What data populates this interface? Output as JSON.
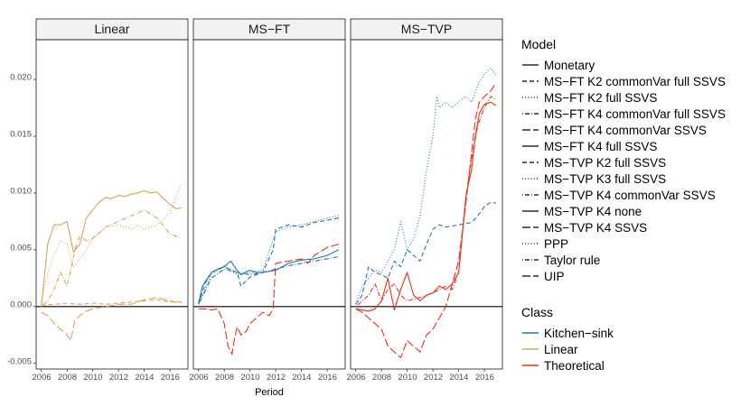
{
  "chart_data": {
    "type": "line",
    "title": "",
    "xlabel": "Period",
    "ylabel": "",
    "xlim": [
      2005.6,
      2017.4
    ],
    "ylim": [
      -0.0055,
      0.0235
    ],
    "x_ticks": [
      "2006",
      "2008",
      "2010",
      "2012",
      "2014",
      "2016"
    ],
    "y_ticks": [
      "-0.005",
      "0.000",
      "0.005",
      "0.010",
      "0.015",
      "0.020"
    ],
    "x_tick_values": [
      2006,
      2008,
      2010,
      2012,
      2014,
      2016
    ],
    "y_tick_values": [
      -0.005,
      0,
      0.005,
      0.01,
      0.015,
      0.02
    ],
    "reference_line_y": 0,
    "panels": [
      "Linear",
      "MS−FT",
      "MS−TVP"
    ],
    "model_legend_title": "Model",
    "class_legend_title": "Class",
    "models": [
      {
        "name": "Monetary",
        "dash": "solid"
      },
      {
        "name": "MS−FT K2 commonVar full SSVS",
        "dash": "dashed"
      },
      {
        "name": "MS−FT K2 full SSVS",
        "dash": "dotted"
      },
      {
        "name": "MS−FT K4 commonVar full SSVS",
        "dash": "dotdash"
      },
      {
        "name": "MS−FT K4 commonVar SSVS",
        "dash": "longdash"
      },
      {
        "name": "MS−FT K4 full SSVS",
        "dash": "solid"
      },
      {
        "name": "MS−TVP K2 full SSVS",
        "dash": "dashed"
      },
      {
        "name": "MS−TVP K3 full SSVS",
        "dash": "dotted"
      },
      {
        "name": "MS−TVP K4 commonVar SSVS",
        "dash": "dotdash"
      },
      {
        "name": "MS−TVP K4 none",
        "dash": "solid"
      },
      {
        "name": "MS−TVP K4 SSVS",
        "dash": "longdash"
      },
      {
        "name": "PPP",
        "dash": "dotted"
      },
      {
        "name": "Taylor rule",
        "dash": "dotdash"
      },
      {
        "name": "UIP",
        "dash": "longdash"
      }
    ],
    "classes": [
      {
        "name": "Kitchen−sink",
        "color": "#1f78a8"
      },
      {
        "name": "Linear",
        "color": "#d9a35a"
      },
      {
        "name": "Theoretical",
        "color": "#e8301c"
      }
    ],
    "series": [
      {
        "panel": 0,
        "model": "Monetary",
        "class": "Linear",
        "x": [
          2006.0,
          2006.5,
          2007.0,
          2007.5,
          2008.0,
          2008.5,
          2009.0,
          2009.5,
          2010.0,
          2010.5,
          2011.0,
          2011.5,
          2012.0,
          2012.5,
          2013.0,
          2013.5,
          2014.0,
          2014.5,
          2015.0,
          2015.5,
          2016.0,
          2016.5,
          2016.9
        ],
        "y": [
          0.0,
          0.0055,
          0.0072,
          0.0072,
          0.0075,
          0.0048,
          0.0055,
          0.0078,
          0.0085,
          0.0092,
          0.0096,
          0.0095,
          0.0098,
          0.0097,
          0.0099,
          0.01,
          0.0102,
          0.01,
          0.0101,
          0.0095,
          0.009,
          0.0086,
          0.0087
        ]
      },
      {
        "panel": 0,
        "model": "PPP",
        "class": "Linear",
        "x": [
          2006.0,
          2006.5,
          2007.0,
          2007.5,
          2008.0,
          2008.5,
          2009.0,
          2009.5,
          2010.0,
          2010.5,
          2011.0,
          2012.0,
          2013.0,
          2013.5,
          2014.0,
          2015.0,
          2016.0,
          2016.5,
          2016.9
        ],
        "y": [
          0.0004,
          0.003,
          0.0045,
          0.0058,
          0.0055,
          0.0035,
          0.0042,
          0.005,
          0.006,
          0.0065,
          0.007,
          0.0072,
          0.0068,
          0.0072,
          0.0068,
          0.0072,
          0.0082,
          0.0098,
          0.0108
        ]
      },
      {
        "panel": 0,
        "model": "Taylor rule",
        "class": "Linear",
        "x": [
          2006.0,
          2006.5,
          2007.0,
          2007.5,
          2008.0,
          2008.3,
          2008.6,
          2009.0,
          2009.5,
          2010.0,
          2011.0,
          2012.0,
          2013.0,
          2014.0,
          2015.0,
          2016.0,
          2016.9
        ],
        "y": [
          0.0,
          0.0005,
          0.0015,
          0.003,
          0.0018,
          0.0032,
          0.005,
          0.0062,
          0.0058,
          0.006,
          0.007,
          0.0075,
          0.008,
          0.0085,
          0.0078,
          0.0064,
          0.006
        ]
      },
      {
        "panel": 0,
        "model": "UIP",
        "class": "Linear",
        "x": [
          2006.0,
          2006.5,
          2007.0,
          2007.5,
          2008.0,
          2008.3,
          2008.6,
          2009.0,
          2009.5,
          2010.0,
          2011.0,
          2012.0,
          2013.0,
          2014.0,
          2015.0,
          2016.0,
          2016.9
        ],
        "y": [
          -0.0005,
          -0.0008,
          -0.0015,
          -0.002,
          -0.0025,
          -0.003,
          -0.0012,
          -0.0008,
          -0.0004,
          -0.0002,
          0.0,
          0.0002,
          0.0002,
          0.0006,
          0.0008,
          0.0005,
          0.0003
        ]
      },
      {
        "panel": 0,
        "model": "MS−FT K2 commonVar full SSVS",
        "class": "Linear",
        "x": [
          2006.0,
          2007.0,
          2008.0,
          2009.0,
          2010.0,
          2011.0,
          2012.0,
          2013.0,
          2014.0,
          2015.0,
          2016.0,
          2016.9
        ],
        "y": [
          0.0001,
          0.0002,
          0.0003,
          0.0002,
          0.0003,
          0.0002,
          0.0003,
          0.0004,
          0.0005,
          0.0006,
          0.0004,
          0.0004
        ]
      },
      {
        "panel": 1,
        "model": "MS−FT K4 full SSVS",
        "class": "Kitchen−sink",
        "x": [
          2006.0,
          2006.3,
          2006.7,
          2007.0,
          2007.5,
          2008.0,
          2008.5,
          2009.0,
          2009.3,
          2009.6,
          2010.0,
          2010.5,
          2011.0,
          2012.0,
          2013.0,
          2014.0,
          2015.0,
          2016.0,
          2016.9
        ],
        "y": [
          0.0003,
          0.0018,
          0.0025,
          0.003,
          0.0033,
          0.0035,
          0.004,
          0.0032,
          0.0028,
          0.003,
          0.0032,
          0.003,
          0.003,
          0.0032,
          0.0038,
          0.0041,
          0.0042,
          0.0045,
          0.005
        ]
      },
      {
        "panel": 1,
        "model": "MS−FT K2 commonVar full SSVS",
        "class": "Kitchen−sink",
        "x": [
          2006.0,
          2006.5,
          2007.0,
          2008.0,
          2009.0,
          2009.3,
          2010.0,
          2011.0,
          2011.8,
          2012.0,
          2013.0,
          2014.0,
          2015.0,
          2016.0,
          2016.9
        ],
        "y": [
          0.0002,
          0.002,
          0.003,
          0.0035,
          0.003,
          0.0018,
          0.0026,
          0.003,
          0.005,
          0.0068,
          0.0072,
          0.007,
          0.0074,
          0.0076,
          0.0078
        ]
      },
      {
        "panel": 1,
        "model": "MS−FT K2 full SSVS",
        "class": "Kitchen−sink",
        "x": [
          2006.0,
          2007.0,
          2008.0,
          2009.0,
          2010.0,
          2011.0,
          2012.0,
          2013.0,
          2014.0,
          2015.0,
          2016.0,
          2016.9
        ],
        "y": [
          0.0003,
          0.0028,
          0.0036,
          0.0028,
          0.003,
          0.0032,
          0.0066,
          0.007,
          0.0072,
          0.0075,
          0.0078,
          0.008
        ]
      },
      {
        "panel": 1,
        "model": "MS−FT K4 commonVar full SSVS",
        "class": "Kitchen−sink",
        "x": [
          2006.0,
          2007.0,
          2008.0,
          2009.0,
          2010.0,
          2011.0,
          2012.0,
          2013.0,
          2014.0,
          2015.0,
          2016.0,
          2016.9
        ],
        "y": [
          0.0002,
          0.0025,
          0.0033,
          0.003,
          0.0028,
          0.003,
          0.0033,
          0.0036,
          0.0038,
          0.004,
          0.0042,
          0.0044
        ]
      },
      {
        "panel": 1,
        "model": "UIP",
        "class": "Theoretical",
        "x": [
          2006.0,
          2006.5,
          2007.0,
          2007.5,
          2008.0,
          2008.3,
          2008.6,
          2008.8,
          2009.0,
          2009.3,
          2009.7,
          2010.0,
          2010.5,
          2011.0,
          2011.5,
          2011.8,
          2012.0,
          2013.0,
          2014.0,
          2014.5,
          2015.0,
          2016.0,
          2016.9
        ],
        "y": [
          -0.0002,
          -0.0002,
          -0.0003,
          -0.0002,
          -0.0015,
          -0.0035,
          -0.0042,
          -0.0028,
          -0.0018,
          -0.0025,
          -0.0022,
          -0.0015,
          -0.001,
          -0.0005,
          -0.0008,
          -0.0002,
          0.0038,
          0.004,
          0.0042,
          0.0038,
          0.0045,
          0.0052,
          0.0055
        ]
      },
      {
        "panel": 2,
        "model": "MS−TVP K3 full SSVS",
        "class": "Kitchen−sink",
        "x": [
          2006.0,
          2006.5,
          2007.0,
          2007.5,
          2008.0,
          2008.5,
          2009.0,
          2009.5,
          2010.0,
          2010.5,
          2011.0,
          2011.5,
          2012.0,
          2012.3,
          2012.5,
          2013.0,
          2013.5,
          2014.0,
          2014.5,
          2015.0,
          2015.5,
          2016.0,
          2016.5,
          2016.9
        ],
        "y": [
          0.0002,
          0.0018,
          0.0025,
          0.0032,
          0.003,
          0.004,
          0.005,
          0.0075,
          0.005,
          0.006,
          0.008,
          0.012,
          0.015,
          0.0185,
          0.0175,
          0.018,
          0.0175,
          0.018,
          0.0185,
          0.018,
          0.0195,
          0.0205,
          0.021,
          0.0204
        ]
      },
      {
        "panel": 2,
        "model": "MS−TVP K2 full SSVS",
        "class": "Kitchen−sink",
        "x": [
          2006.0,
          2006.5,
          2007.0,
          2007.5,
          2008.0,
          2008.5,
          2009.0,
          2009.5,
          2010.0,
          2010.5,
          2011.0,
          2011.5,
          2012.0,
          2012.5,
          2013.0,
          2014.0,
          2015.0,
          2015.5,
          2016.0,
          2016.5,
          2016.9
        ],
        "y": [
          0.0002,
          0.001,
          0.0035,
          0.003,
          0.0028,
          0.0025,
          0.004,
          0.0035,
          0.005,
          0.0045,
          0.004,
          0.0055,
          0.0068,
          0.0072,
          0.007,
          0.0072,
          0.0074,
          0.008,
          0.0088,
          0.0092,
          0.0091
        ]
      },
      {
        "panel": 2,
        "model": "MS−TVP K4 none",
        "class": "Theoretical",
        "x": [
          2006.0,
          2006.5,
          2007.0,
          2007.5,
          2008.0,
          2008.5,
          2009.0,
          2009.5,
          2010.0,
          2010.5,
          2011.0,
          2011.5,
          2012.0,
          2012.5,
          2013.0,
          2013.5,
          2014.0,
          2014.3,
          2014.6,
          2015.0,
          2015.3,
          2015.6,
          2016.0,
          2016.5,
          2016.9
        ],
        "y": [
          -0.0002,
          -0.0003,
          -0.0004,
          -0.0002,
          0.0005,
          0.0025,
          -0.0003,
          0.0015,
          0.003,
          0.001,
          0.0005,
          0.001,
          0.0012,
          0.0018,
          0.0015,
          0.002,
          0.003,
          0.0065,
          0.01,
          0.012,
          0.015,
          0.017,
          0.0178,
          0.018,
          0.0177
        ]
      },
      {
        "panel": 2,
        "model": "MS−TVP K4 SSVS",
        "class": "Theoretical",
        "x": [
          2006.0,
          2006.5,
          2007.0,
          2007.5,
          2008.0,
          2008.5,
          2009.0,
          2009.5,
          2010.0,
          2010.5,
          2011.0,
          2011.5,
          2012.0,
          2012.5,
          2013.0,
          2013.5,
          2014.0,
          2014.5,
          2015.0,
          2015.3,
          2015.6,
          2016.0,
          2016.5,
          2016.9
        ],
        "y": [
          -0.0002,
          -0.0005,
          -0.001,
          -0.0015,
          -0.002,
          -0.0035,
          -0.004,
          -0.0045,
          -0.003,
          -0.0035,
          -0.004,
          -0.0025,
          -0.002,
          -0.001,
          0.0,
          0.002,
          0.004,
          0.0085,
          0.0135,
          0.0165,
          0.018,
          0.0185,
          0.019,
          0.0197
        ]
      },
      {
        "panel": 2,
        "model": "Taylor rule",
        "class": "Theoretical",
        "x": [
          2006.0,
          2006.5,
          2007.0,
          2007.5,
          2008.0,
          2008.5,
          2009.0,
          2009.5,
          2010.0,
          2011.0,
          2012.0,
          2012.5,
          2013.0,
          2013.5,
          2014.0,
          2014.5,
          2015.0,
          2015.5,
          2016.0,
          2016.5,
          2016.9
        ],
        "y": [
          0.0,
          0.0005,
          0.001,
          0.002,
          0.0005,
          0.0015,
          0.002,
          0.001,
          0.0005,
          0.0008,
          0.0012,
          0.0015,
          0.0018,
          0.0015,
          0.003,
          0.009,
          0.013,
          0.016,
          0.0175,
          0.0185,
          0.0182
        ]
      }
    ]
  }
}
